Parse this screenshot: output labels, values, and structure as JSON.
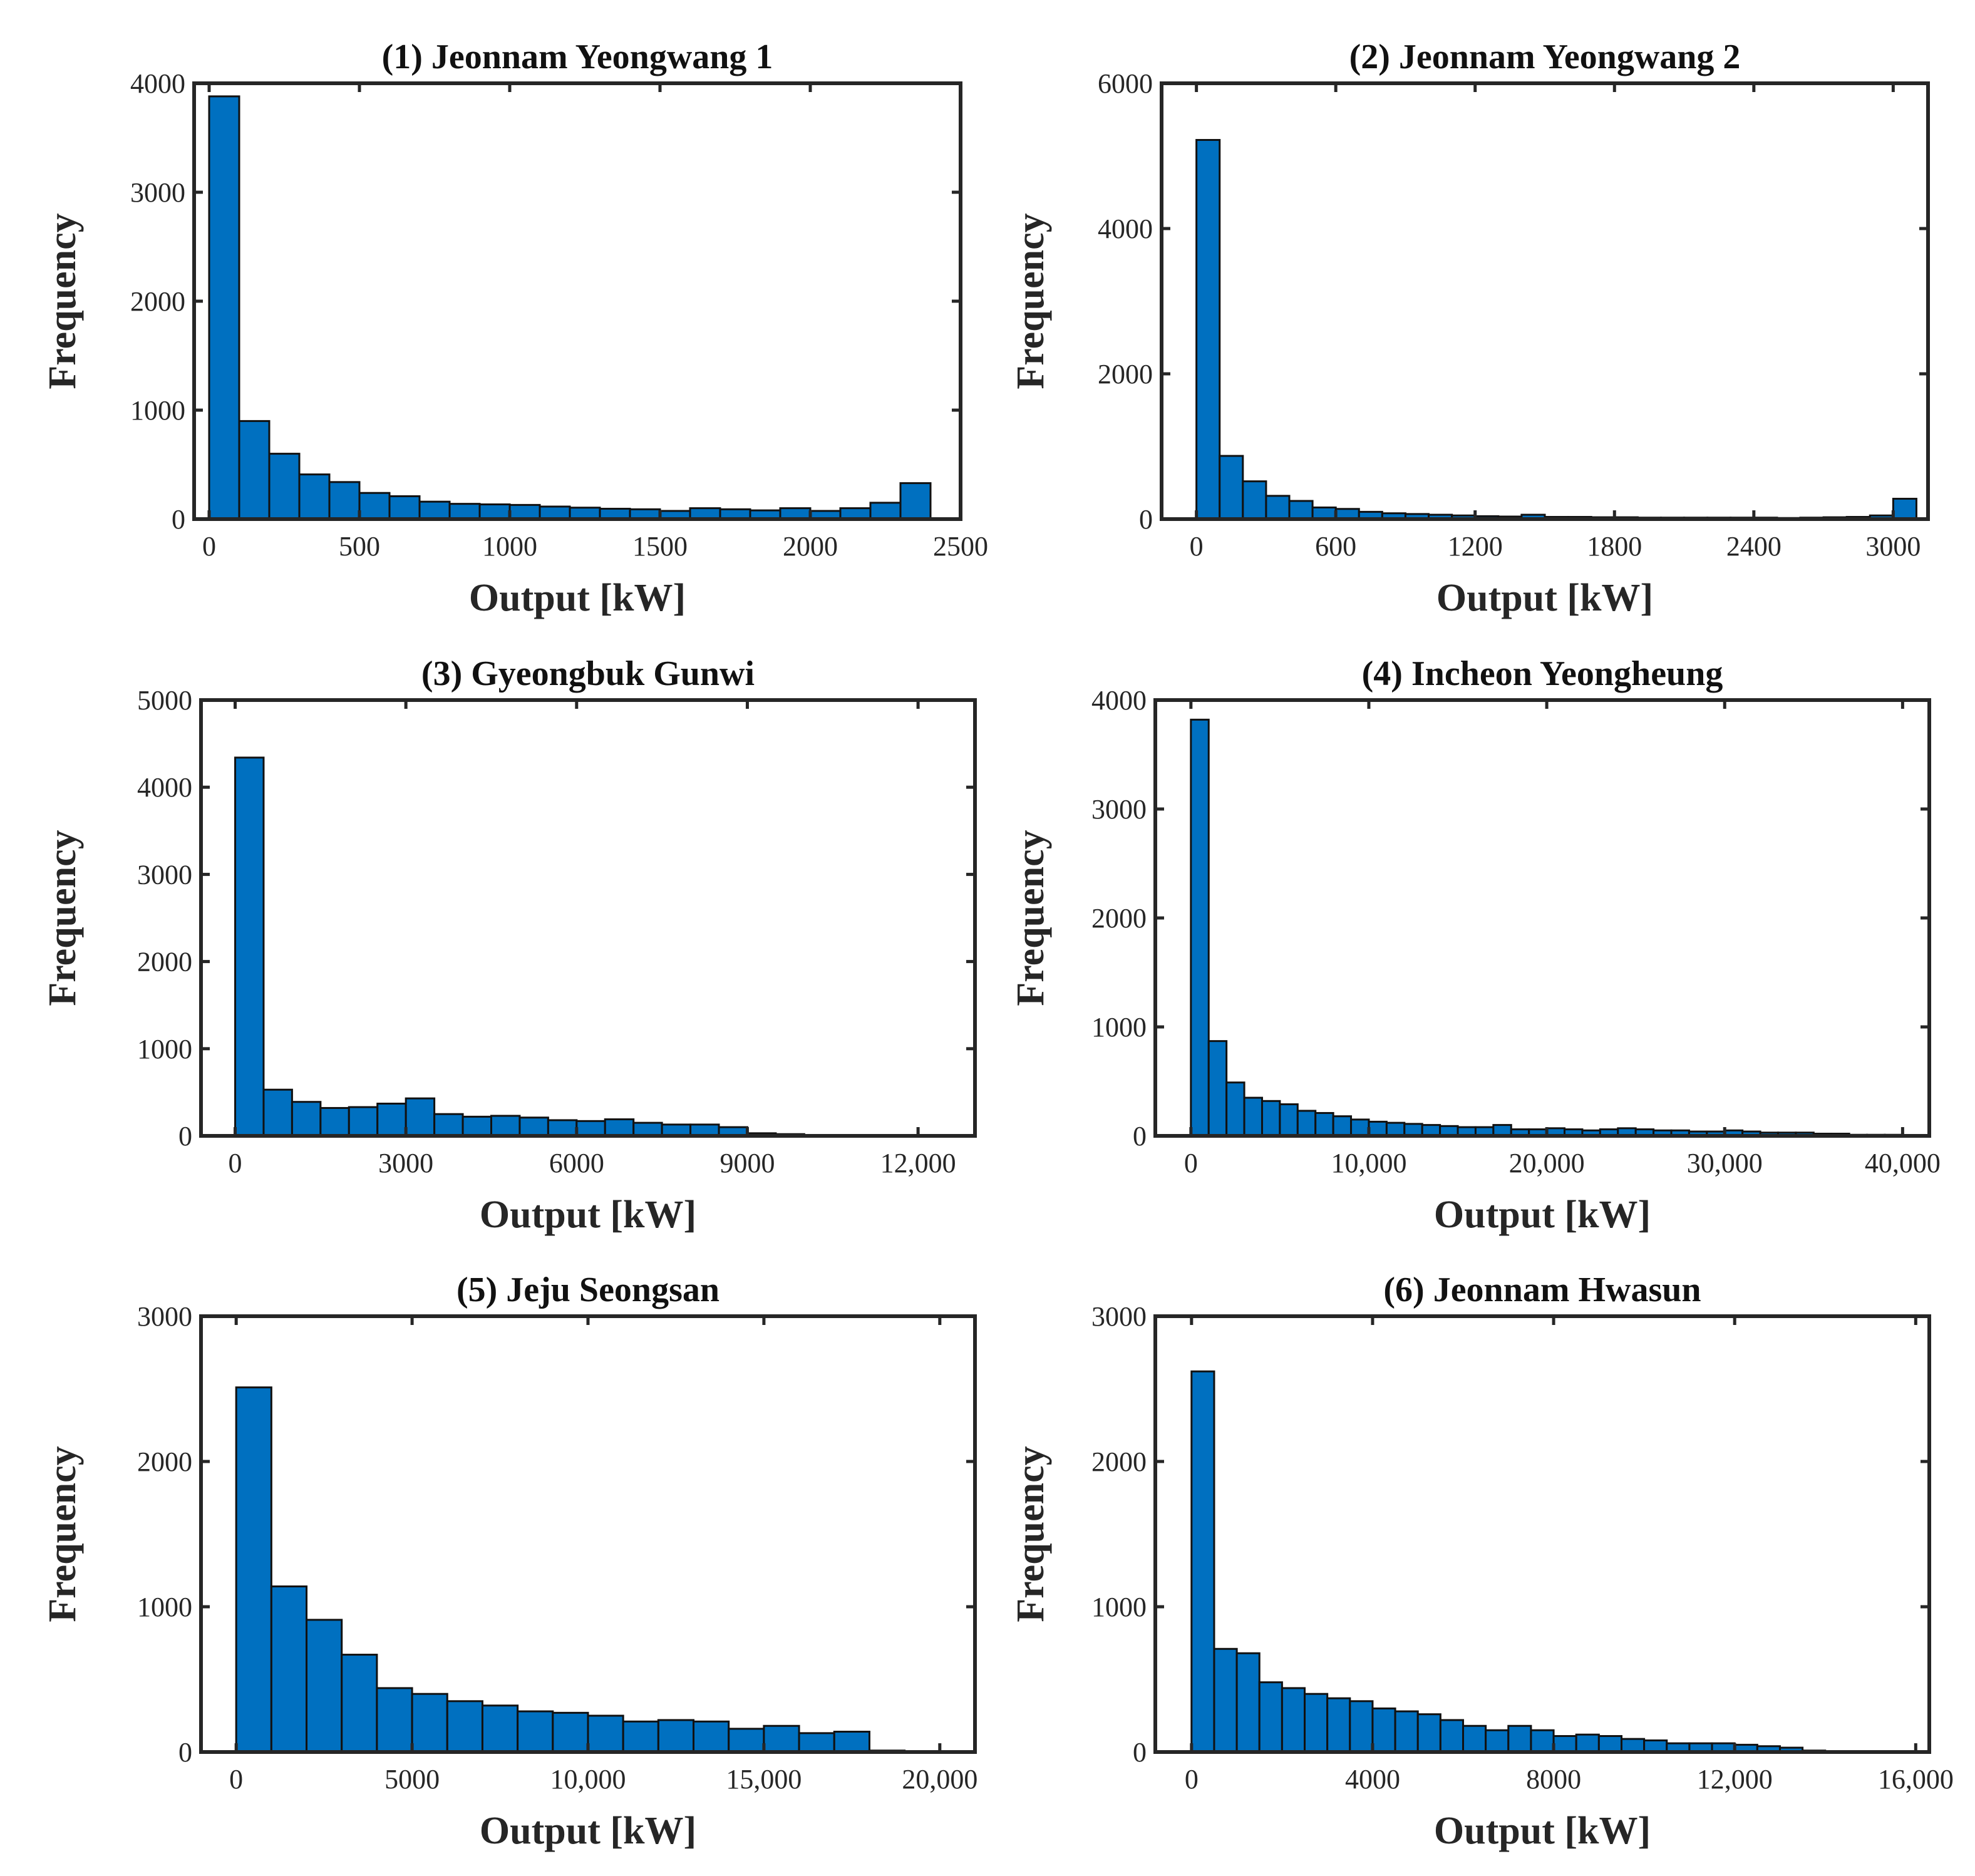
{
  "chart_data": [
    {
      "type": "bar",
      "title": "(1) Jeonnam Yeongwang 1",
      "xlabel": "Output [kW]",
      "ylabel": "Frequency",
      "xlim": [
        -50,
        2500
      ],
      "ylim": [
        0,
        4000
      ],
      "xticks": [
        0,
        500,
        1000,
        1500,
        2000,
        2500
      ],
      "xtick_labels": [
        "0",
        "500",
        "1000",
        "1500",
        "2000",
        "2500"
      ],
      "yticks": [
        0,
        1000,
        2000,
        3000,
        4000
      ],
      "ytick_labels": [
        "0",
        "1000",
        "2000",
        "3000",
        "4000"
      ],
      "bin_start": 0,
      "bin_width": 100,
      "values": [
        3880,
        900,
        600,
        410,
        340,
        240,
        210,
        160,
        140,
        135,
        130,
        115,
        105,
        95,
        90,
        75,
        100,
        90,
        80,
        100,
        75,
        100,
        150,
        330
      ],
      "color": "#0070C0"
    },
    {
      "type": "bar",
      "title": "(2) Jeonnam Yeongwang 2",
      "xlabel": "Output [kW]",
      "ylabel": "Frequency",
      "xlim": [
        -150,
        3150
      ],
      "ylim": [
        0,
        6000
      ],
      "xticks": [
        0,
        600,
        1200,
        1800,
        2400,
        3000
      ],
      "xtick_labels": [
        "0",
        "600",
        "1200",
        "1800",
        "2400",
        "3000"
      ],
      "yticks": [
        0,
        2000,
        4000,
        6000
      ],
      "ytick_labels": [
        "0",
        "2000",
        "4000",
        "6000"
      ],
      "bin_start": 0,
      "bin_width": 100,
      "values": [
        5220,
        870,
        520,
        320,
        250,
        160,
        140,
        100,
        80,
        70,
        60,
        50,
        40,
        35,
        60,
        30,
        30,
        25,
        25,
        20,
        20,
        20,
        20,
        20,
        20,
        15,
        20,
        25,
        30,
        50,
        280
      ],
      "color": "#0070C0"
    },
    {
      "type": "bar",
      "title": "(3) Gyeongbuk Gunwi",
      "xlabel": "Output [kW]",
      "ylabel": "Frequency",
      "xlim": [
        -600,
        13000
      ],
      "ylim": [
        0,
        5000
      ],
      "xticks": [
        0,
        3000,
        6000,
        9000,
        12000
      ],
      "xtick_labels": [
        "0",
        "3000",
        "6000",
        "9000",
        "12,000"
      ],
      "yticks": [
        0,
        1000,
        2000,
        3000,
        4000,
        5000
      ],
      "ytick_labels": [
        "0",
        "1000",
        "2000",
        "3000",
        "4000",
        "5000"
      ],
      "bin_start": 0,
      "bin_width": 500,
      "values": [
        4340,
        530,
        390,
        320,
        330,
        370,
        430,
        250,
        220,
        230,
        210,
        180,
        170,
        190,
        150,
        130,
        130,
        100,
        30,
        20,
        10,
        10,
        5,
        5,
        5
      ],
      "color": "#0070C0"
    },
    {
      "type": "bar",
      "title": "(4) Incheon Yeongheung",
      "xlabel": "Output [kW]",
      "ylabel": "Frequency",
      "xlim": [
        -2000,
        41500
      ],
      "ylim": [
        0,
        4000
      ],
      "xticks": [
        0,
        10000,
        20000,
        30000,
        40000
      ],
      "xtick_labels": [
        "0",
        "10,000",
        "20,000",
        "30,000",
        "40,000"
      ],
      "yticks": [
        0,
        1000,
        2000,
        3000,
        4000
      ],
      "ytick_labels": [
        "0",
        "1000",
        "2000",
        "3000",
        "4000"
      ],
      "bin_start": 0,
      "bin_width": 1000,
      "values": [
        3820,
        870,
        490,
        350,
        320,
        290,
        230,
        210,
        180,
        150,
        130,
        120,
        110,
        100,
        90,
        80,
        80,
        100,
        60,
        60,
        70,
        60,
        50,
        60,
        70,
        60,
        50,
        50,
        40,
        40,
        50,
        40,
        30,
        30,
        30,
        20,
        20,
        10,
        10,
        10,
        5
      ],
      "color": "#0070C0"
    },
    {
      "type": "bar",
      "title": "(5) Jeju Seongsan",
      "xlabel": "Output [kW]",
      "ylabel": "Frequency",
      "xlim": [
        -1000,
        21000
      ],
      "ylim": [
        0,
        3000
      ],
      "xticks": [
        0,
        5000,
        10000,
        15000,
        20000
      ],
      "xtick_labels": [
        "0",
        "5000",
        "10,000",
        "15,000",
        "20,000"
      ],
      "yticks": [
        0,
        1000,
        2000,
        3000
      ],
      "ytick_labels": [
        "0",
        "1000",
        "2000",
        "3000"
      ],
      "bin_start": 0,
      "bin_width": 1000,
      "values": [
        2510,
        1140,
        910,
        670,
        440,
        400,
        350,
        320,
        280,
        270,
        250,
        210,
        220,
        210,
        160,
        180,
        130,
        140,
        10,
        5
      ],
      "color": "#0070C0"
    },
    {
      "type": "bar",
      "title": "(6) Jeonnam Hwasun",
      "xlabel": "Output [kW]",
      "ylabel": "Frequency",
      "xlim": [
        -800,
        16300
      ],
      "ylim": [
        0,
        3000
      ],
      "xticks": [
        0,
        4000,
        8000,
        12000,
        16000
      ],
      "xtick_labels": [
        "0",
        "4000",
        "8000",
        "12,000",
        "16,000"
      ],
      "yticks": [
        0,
        1000,
        2000,
        3000
      ],
      "ytick_labels": [
        "0",
        "1000",
        "2000",
        "3000"
      ],
      "bin_start": 0,
      "bin_width": 500,
      "values": [
        2620,
        710,
        680,
        480,
        440,
        400,
        370,
        350,
        300,
        280,
        260,
        220,
        180,
        150,
        180,
        150,
        110,
        120,
        110,
        90,
        80,
        60,
        60,
        60,
        50,
        40,
        30,
        10,
        5,
        5,
        5
      ],
      "color": "#0070C0"
    }
  ]
}
